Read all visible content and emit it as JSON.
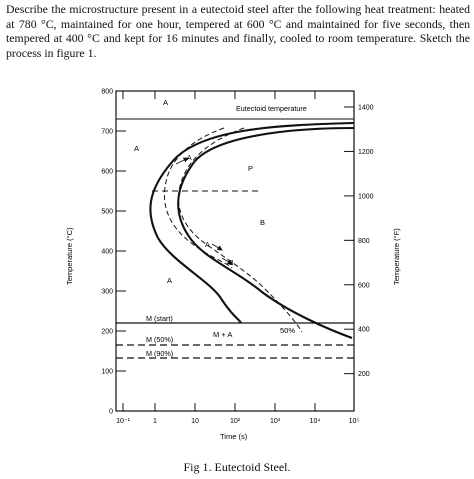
{
  "question": {
    "text": "Describe the microstructure present in a eutectoid steel after the following heat treatment: heated at 780 °C, maintained for one hour, tempered at 600 °C and maintained for five seconds, then tempered at 400 °C and kept for 16 minutes and finally, cooled to room temperature. Sketch the process in figure 1."
  },
  "figure": {
    "caption": "Fig 1. Eutectoid Steel."
  },
  "chart_data": {
    "type": "line",
    "title": "",
    "xlabel": "Time (s)",
    "ylabel": "Temperature (°C)",
    "ylabel_right": "Temperature (°F)",
    "x_scale": "log",
    "xlim": [
      0.1,
      100000
    ],
    "ylim": [
      0,
      800
    ],
    "x_ticks": [
      "10⁻¹",
      "1",
      "10",
      "10²",
      "10³",
      "10⁴",
      "10⁵"
    ],
    "y_ticks": [
      "0",
      "100",
      "200",
      "300",
      "400",
      "500",
      "600",
      "700",
      "800"
    ],
    "y_ticks_right": [
      "200",
      "400",
      "600",
      "800",
      "1000",
      "1200",
      "1400"
    ],
    "eutectoid_line": {
      "label": "Eutectoid temperature",
      "y": 727
    },
    "series": [
      {
        "points": [
          [
            1000,
            700
          ],
          [
            15,
            660
          ],
          [
            3,
            540
          ],
          [
            6,
            380
          ],
          [
            30,
            280
          ],
          [
            70,
            200
          ]
        ]
      },
      {
        "points": [
          [
            30000,
            712
          ],
          [
            60,
            670
          ],
          [
            6,
            540
          ],
          [
            13,
            380
          ],
          [
            100,
            280
          ],
          [
            2000,
            200
          ],
          [
            50000,
            160
          ]
        ]
      }
    ],
    "labels": {
      "A": "A",
      "P": "P",
      "B": "B",
      "mplusa": "M + A",
      "fifty": "50%",
      "ms": "M (start)",
      "m50": "M (50%)",
      "m90": "M (90%)",
      "arrowA": "A",
      "arrowB": "B"
    }
  }
}
